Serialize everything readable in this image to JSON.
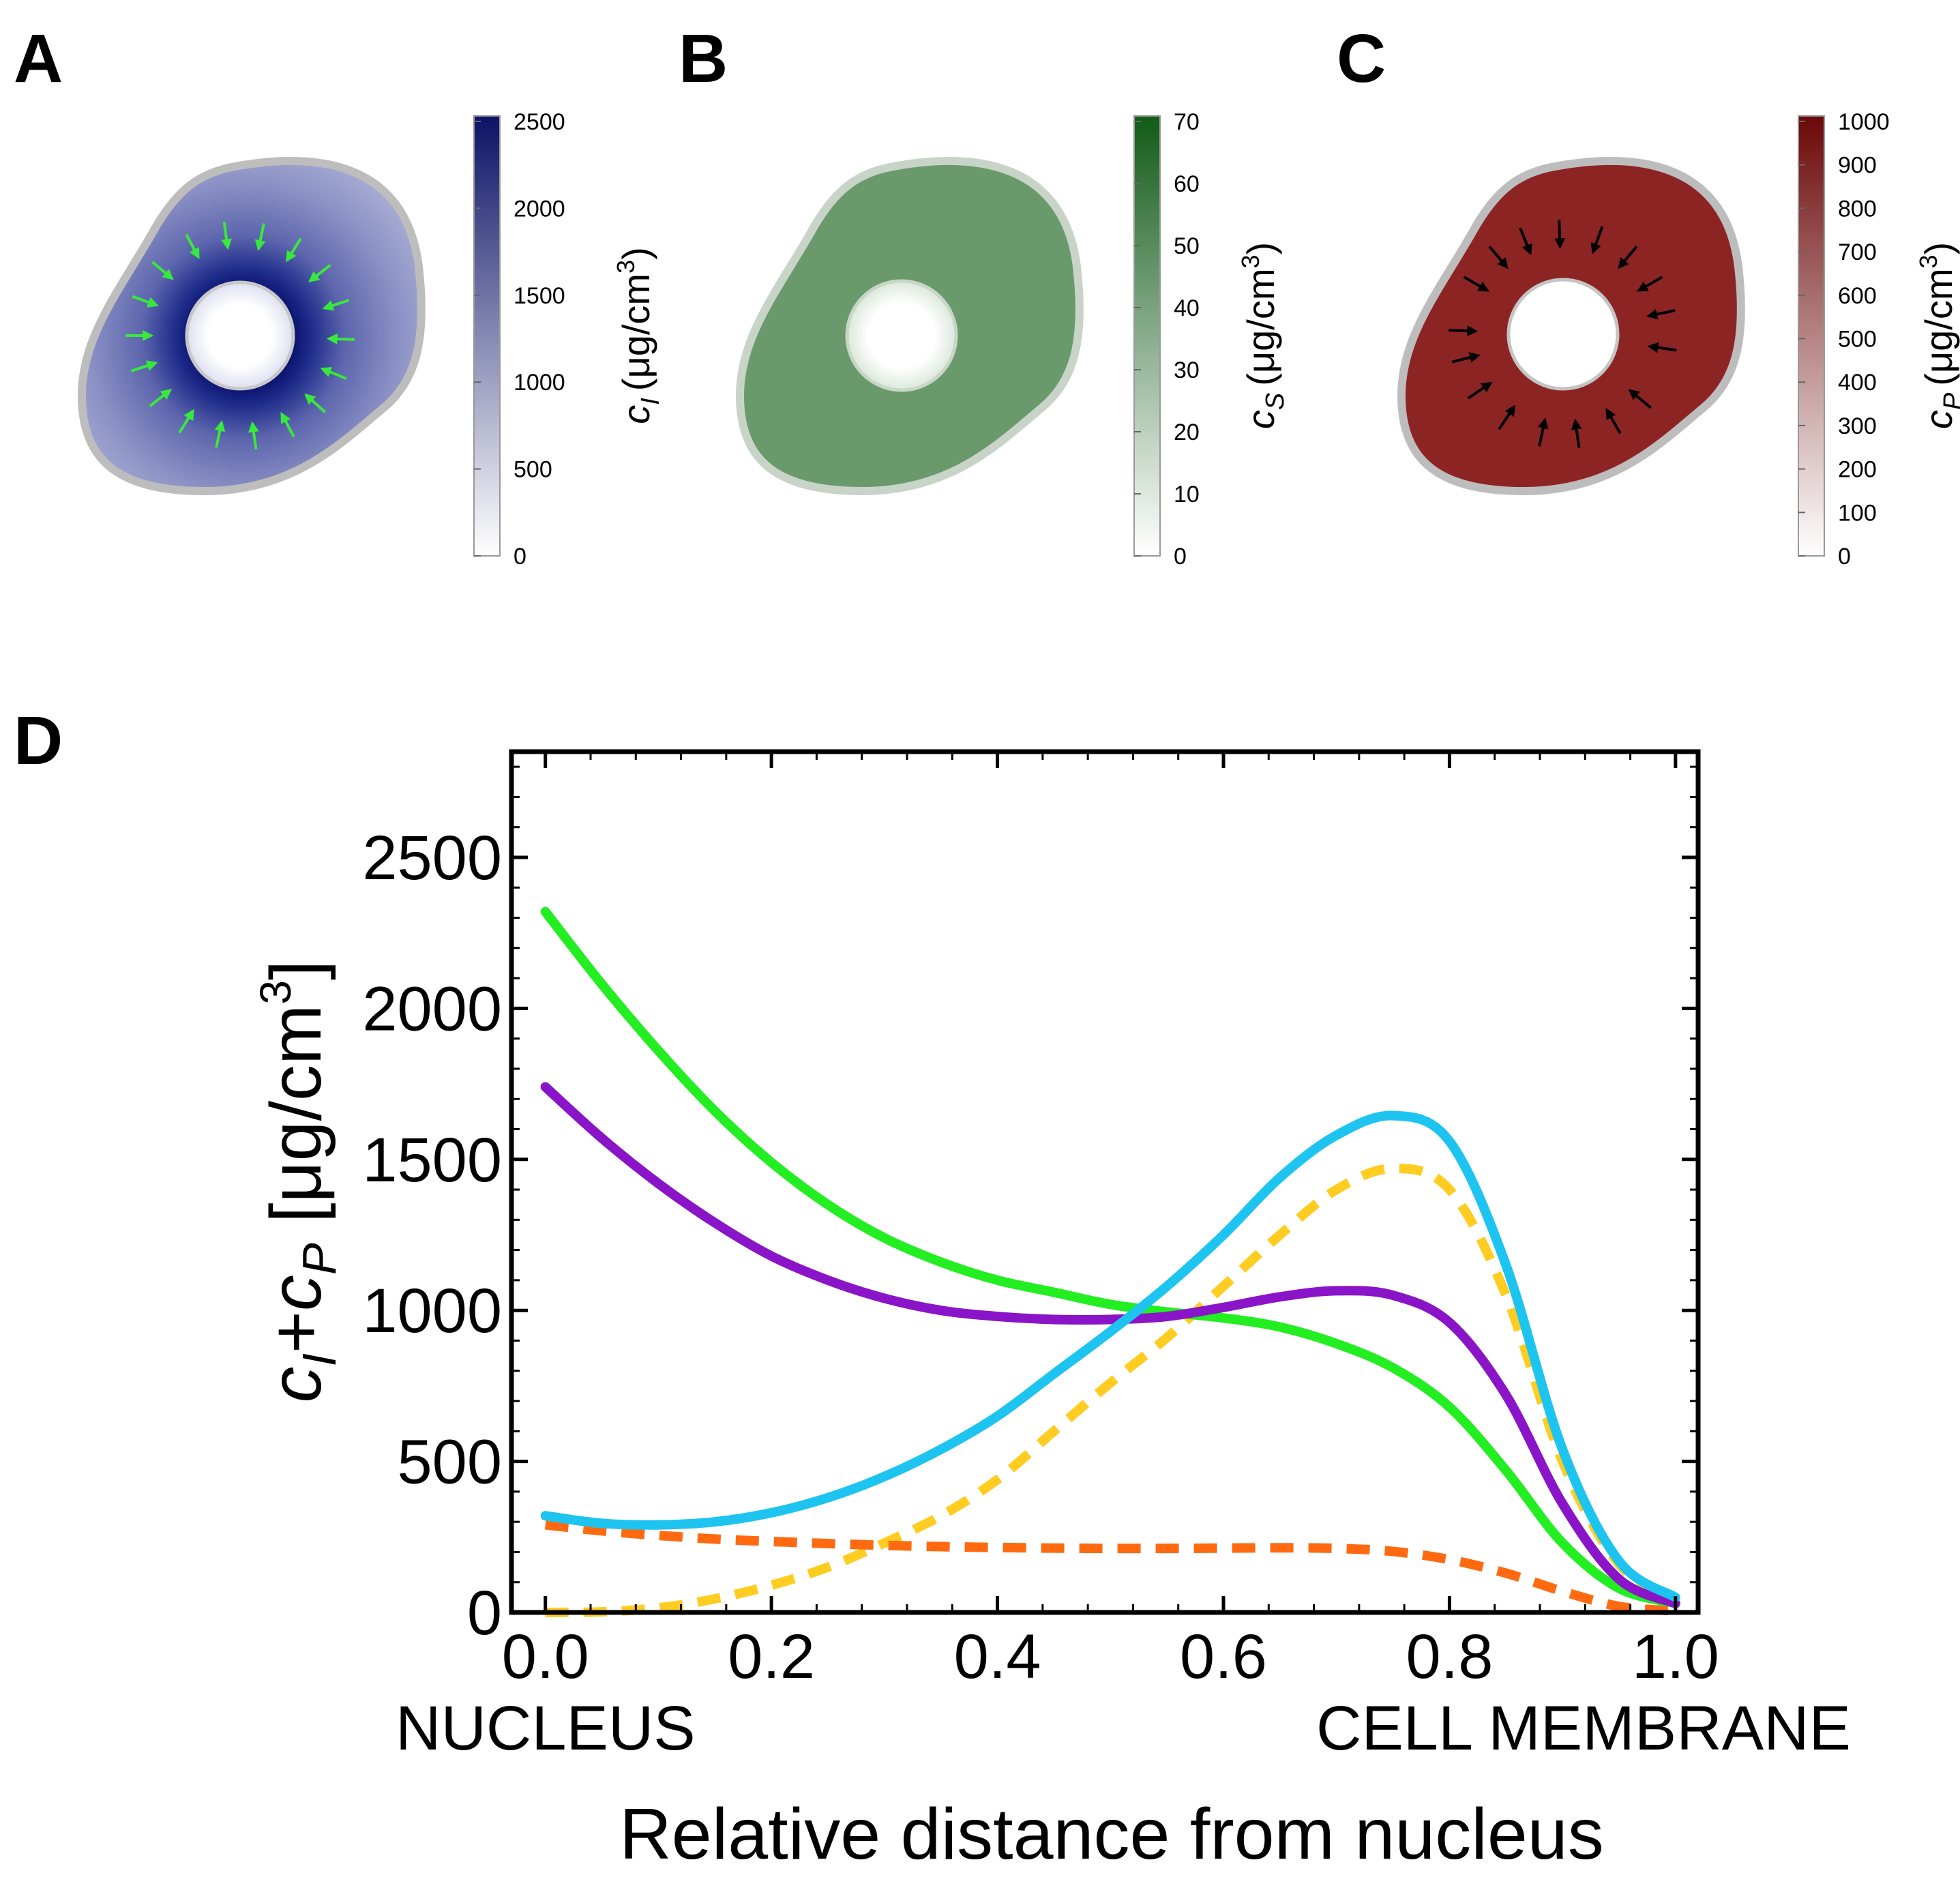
{
  "panels": {
    "A": {
      "letter": "A",
      "colorbar": {
        "label_var": "c",
        "label_sub": "I",
        "label_unit_open": "(μg/cm",
        "label_unit_sup": "3",
        "label_unit_close": ")",
        "ticks": [
          "2500",
          "2000",
          "1500",
          "1000",
          "500",
          "0"
        ],
        "max_color": "#0c1366",
        "min_color": "#ffffff"
      },
      "arrow_color": "#39e83c"
    },
    "B": {
      "letter": "B",
      "colorbar": {
        "label_var": "c",
        "label_sub": "S",
        "label_unit_open": "(μg/cm",
        "label_unit_sup": "3",
        "label_unit_close": ")",
        "ticks": [
          "70",
          "60",
          "50",
          "40",
          "30",
          "20",
          "10",
          "0"
        ],
        "max_color": "#125b18",
        "min_color": "#ffffff"
      }
    },
    "C": {
      "letter": "C",
      "colorbar": {
        "label_var": "c",
        "label_sub": "P",
        "label_unit_open": "(μg/cm",
        "label_unit_sup": "3",
        "label_unit_close": ")",
        "ticks": [
          "1000",
          "900",
          "800",
          "700",
          "600",
          "500",
          "400",
          "300",
          "200",
          "100",
          "0"
        ],
        "max_color": "#6b0808",
        "min_color": "#ffffff"
      },
      "arrow_color": "#000000"
    },
    "D": {
      "letter": "D",
      "left_endpoint_label": "NUCLEUS",
      "right_endpoint_label": "CELL MEMBRANE"
    }
  },
  "chart_data": {
    "type": "line",
    "title": "",
    "xlabel": "Relative distance from nucleus",
    "ylabel_parts": {
      "a": "c",
      "a_sub": "I",
      "plus": "+",
      "b": "c",
      "b_sub": "P",
      "unit_open": " [μg/cm",
      "unit_sup": "3",
      "unit_close": "]"
    },
    "xlim": [
      -0.03,
      1.02
    ],
    "ylim": [
      0,
      2850
    ],
    "xticks": [
      0.0,
      0.2,
      0.4,
      0.6,
      0.8,
      1.0
    ],
    "xtick_labels": [
      "0.0",
      "0.2",
      "0.4",
      "0.6",
      "0.8",
      "1.0"
    ],
    "yticks": [
      0,
      500,
      1000,
      1500,
      2000,
      2500
    ],
    "ytick_labels": [
      "0",
      "500",
      "1000",
      "1500",
      "2000",
      "2500"
    ],
    "grid": false,
    "series": [
      {
        "name": "green",
        "color": "#22ee22",
        "dashed": false,
        "x": [
          0.0,
          0.05,
          0.1,
          0.15,
          0.2,
          0.25,
          0.3,
          0.35,
          0.4,
          0.45,
          0.5,
          0.55,
          0.6,
          0.65,
          0.7,
          0.75,
          0.8,
          0.85,
          0.9,
          0.95,
          1.0
        ],
        "y": [
          2320,
          2080,
          1860,
          1660,
          1490,
          1350,
          1240,
          1160,
          1100,
          1060,
          1020,
          995,
          975,
          945,
          890,
          810,
          680,
          470,
          230,
          80,
          30
        ]
      },
      {
        "name": "purple",
        "color": "#8a14c8",
        "dashed": false,
        "x": [
          0.0,
          0.05,
          0.1,
          0.15,
          0.2,
          0.25,
          0.3,
          0.35,
          0.4,
          0.45,
          0.5,
          0.55,
          0.6,
          0.65,
          0.7,
          0.75,
          0.8,
          0.85,
          0.9,
          0.95,
          1.0
        ],
        "y": [
          1740,
          1570,
          1420,
          1290,
          1180,
          1100,
          1040,
          1000,
          980,
          970,
          970,
          980,
          1010,
          1045,
          1065,
          1050,
          960,
          720,
          360,
          110,
          30
        ]
      },
      {
        "name": "cyan",
        "color": "#1ec4f0",
        "dashed": false,
        "x": [
          0.0,
          0.05,
          0.1,
          0.15,
          0.2,
          0.25,
          0.3,
          0.35,
          0.4,
          0.45,
          0.5,
          0.55,
          0.6,
          0.65,
          0.7,
          0.75,
          0.8,
          0.85,
          0.9,
          0.95,
          1.0
        ],
        "y": [
          320,
          295,
          290,
          300,
          330,
          380,
          450,
          540,
          650,
          790,
          930,
          1080,
          1250,
          1440,
          1580,
          1645,
          1560,
          1150,
          540,
          170,
          50
        ]
      },
      {
        "name": "yellow",
        "color": "#ffcc22",
        "dashed": true,
        "x": [
          0.0,
          0.05,
          0.1,
          0.15,
          0.2,
          0.25,
          0.3,
          0.35,
          0.4,
          0.45,
          0.5,
          0.55,
          0.6,
          0.65,
          0.7,
          0.75,
          0.8,
          0.85,
          0.9,
          0.95,
          1.0
        ],
        "y": [
          0,
          2,
          15,
          45,
          90,
          150,
          230,
          320,
          440,
          600,
          760,
          910,
          1080,
          1250,
          1400,
          1470,
          1400,
          1050,
          500,
          160,
          40
        ]
      },
      {
        "name": "orange",
        "color": "#ff6a10",
        "dashed": true,
        "x": [
          0.0,
          0.05,
          0.1,
          0.15,
          0.2,
          0.25,
          0.3,
          0.35,
          0.4,
          0.45,
          0.5,
          0.55,
          0.6,
          0.65,
          0.7,
          0.75,
          0.8,
          0.85,
          0.9,
          0.95,
          1.0
        ],
        "y": [
          290,
          270,
          255,
          243,
          235,
          228,
          222,
          218,
          215,
          213,
          212,
          212,
          213,
          214,
          212,
          202,
          175,
          130,
          70,
          20,
          5
        ]
      }
    ]
  }
}
